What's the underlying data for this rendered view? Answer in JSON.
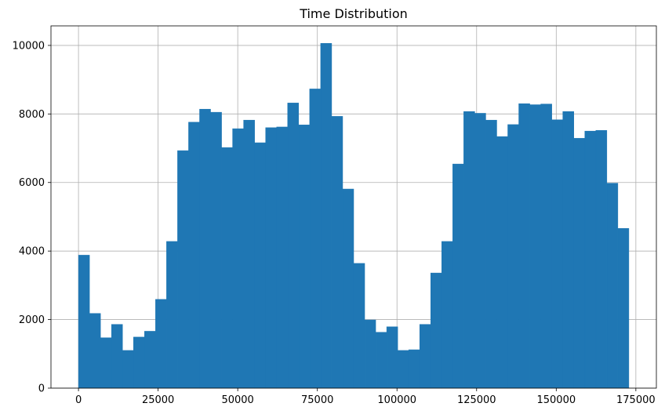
{
  "chart_data": {
    "type": "bar",
    "title": "Time Distribution",
    "xlabel": "",
    "ylabel": "",
    "xlim": [
      -8640,
      181440
    ],
    "ylim": [
      0,
      10570
    ],
    "grid": true,
    "bar_color": "#1f77b4",
    "grid_color": "#b0b0b0",
    "bin_start": 0,
    "bin_width": 3456,
    "counts": [
      3880,
      2180,
      1470,
      1860,
      1100,
      1490,
      1660,
      2590,
      4280,
      6930,
      7760,
      8140,
      8050,
      7020,
      7570,
      7820,
      7160,
      7600,
      7620,
      8320,
      7680,
      8730,
      10060,
      7930,
      5810,
      3640,
      1990,
      1630,
      1790,
      1100,
      1120,
      1860,
      3360,
      4280,
      6540,
      8070,
      8020,
      7820,
      7340,
      7690,
      8300,
      8270,
      8290,
      7830,
      8070,
      7290,
      7500,
      7520,
      5980,
      4660
    ],
    "xticks": [
      0,
      25000,
      50000,
      75000,
      100000,
      125000,
      150000,
      175000
    ],
    "xtick_labels": [
      "0",
      "25000",
      "50000",
      "75000",
      "100000",
      "125000",
      "150000",
      "175000"
    ],
    "yticks": [
      0,
      2000,
      4000,
      6000,
      8000,
      10000
    ],
    "ytick_labels": [
      "0",
      "2000",
      "4000",
      "6000",
      "8000",
      "10000"
    ]
  }
}
